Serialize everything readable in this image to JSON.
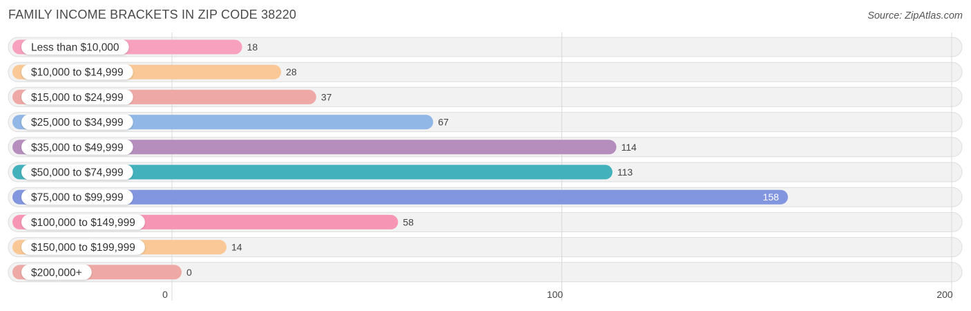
{
  "header": {
    "title": "FAMILY INCOME BRACKETS IN ZIP CODE 38220",
    "source": "Source: ZipAtlas.com"
  },
  "chart_data": {
    "type": "bar",
    "orientation": "horizontal",
    "title": "FAMILY INCOME BRACKETS IN ZIP CODE 38220",
    "xlabel": "",
    "ylabel": "",
    "xlim": [
      0,
      200
    ],
    "xticks": [
      0,
      100,
      200
    ],
    "grid": true,
    "categories": [
      "Less than $10,000",
      "$10,000 to $14,999",
      "$15,000 to $24,999",
      "$25,000 to $34,999",
      "$35,000 to $49,999",
      "$50,000 to $74,999",
      "$75,000 to $99,999",
      "$100,000 to $149,999",
      "$150,000 to $199,999",
      "$200,000+"
    ],
    "values": [
      18,
      28,
      37,
      67,
      114,
      113,
      158,
      58,
      14,
      0
    ],
    "colors": [
      "#f7a1be",
      "#f9c896",
      "#eea9a6",
      "#91b7e6",
      "#b68ebe",
      "#43b1bc",
      "#8295df",
      "#f796b4",
      "#f9c896",
      "#eea9a6"
    ]
  }
}
